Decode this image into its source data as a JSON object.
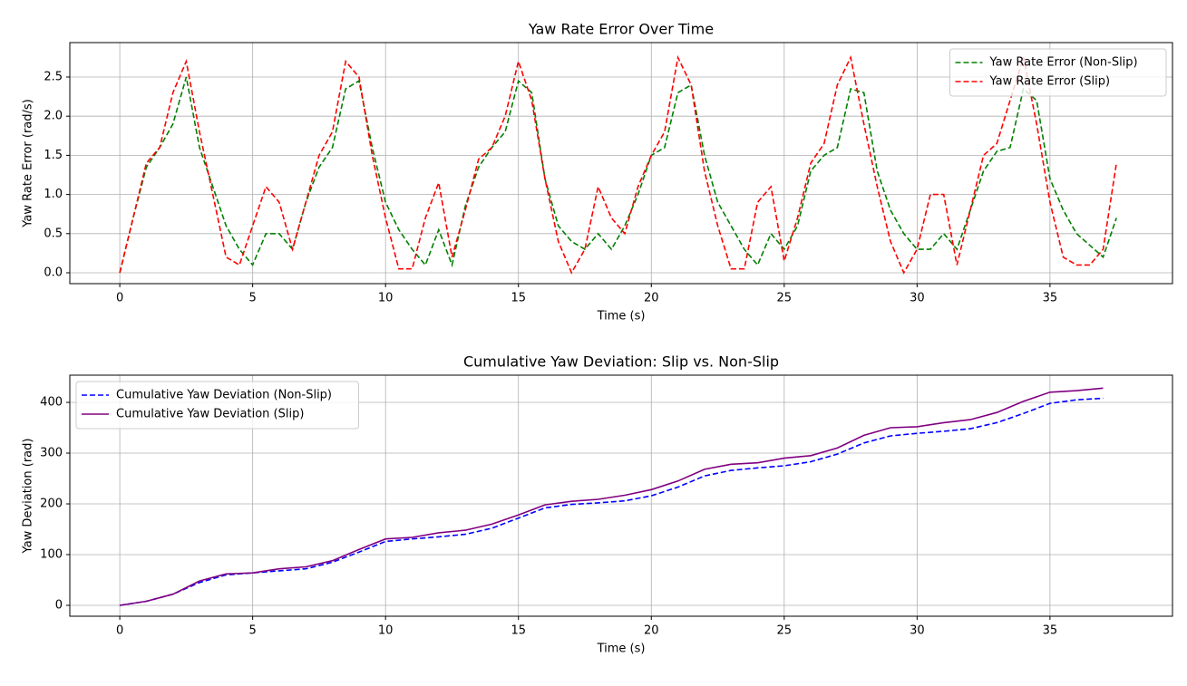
{
  "chart_data": [
    {
      "type": "line",
      "title": "Yaw Rate Error Over Time",
      "x_label": "Time (s)",
      "y_label": "Yaw Rate Error (rad/s)",
      "x": [
        0,
        0.5,
        1,
        1.5,
        2,
        2.5,
        3,
        3.5,
        4,
        4.5,
        5,
        5.5,
        6,
        6.5,
        7,
        7.5,
        8,
        8.5,
        9,
        9.5,
        10,
        10.5,
        11,
        11.5,
        12,
        12.5,
        13,
        13.5,
        14,
        14.5,
        15,
        15.5,
        16,
        16.5,
        17,
        17.5,
        18,
        18.5,
        19,
        19.5,
        20,
        20.5,
        21,
        21.5,
        22,
        22.5,
        23,
        23.5,
        24,
        24.5,
        25,
        25.5,
        26,
        26.5,
        27,
        27.5,
        28,
        28.5,
        29,
        29.5,
        30,
        30.5,
        31,
        31.5,
        32,
        32.5,
        33,
        33.5,
        34,
        34.5,
        35,
        35.5,
        36,
        36.5,
        37,
        37.5
      ],
      "series": [
        {
          "name": "Yaw Rate Error (Non-Slip)",
          "color": "#008000",
          "linestyle": "dashed",
          "values": [
            0,
            0.7,
            1.35,
            1.6,
            1.9,
            2.5,
            1.6,
            1.1,
            0.6,
            0.3,
            0.1,
            0.5,
            0.5,
            0.3,
            0.9,
            1.35,
            1.6,
            2.35,
            2.45,
            1.6,
            0.9,
            0.55,
            0.3,
            0.1,
            0.55,
            0.1,
            0.85,
            1.35,
            1.6,
            1.8,
            2.45,
            2.3,
            1.2,
            0.6,
            0.4,
            0.3,
            0.5,
            0.3,
            0.6,
            1.0,
            1.5,
            1.6,
            2.3,
            2.4,
            1.5,
            0.9,
            0.6,
            0.3,
            0.1,
            0.5,
            0.3,
            0.6,
            1.3,
            1.5,
            1.6,
            2.35,
            2.3,
            1.3,
            0.8,
            0.5,
            0.3,
            0.3,
            0.5,
            0.3,
            0.8,
            1.3,
            1.55,
            1.6,
            2.35,
            2.2,
            1.2,
            0.8,
            0.5,
            0.35,
            0.2,
            0.7
          ]
        },
        {
          "name": "Yaw Rate Error (Slip)",
          "color": "#ff0000",
          "linestyle": "dashed",
          "values": [
            0,
            0.7,
            1.4,
            1.6,
            2.3,
            2.7,
            1.8,
            1.0,
            0.2,
            0.1,
            0.6,
            1.1,
            0.9,
            0.3,
            0.9,
            1.5,
            1.8,
            2.7,
            2.5,
            1.5,
            0.7,
            0.05,
            0.05,
            0.7,
            1.15,
            0.2,
            0.8,
            1.45,
            1.6,
            2.0,
            2.7,
            2.2,
            1.2,
            0.4,
            0.0,
            0.3,
            1.1,
            0.7,
            0.5,
            1.1,
            1.5,
            1.8,
            2.75,
            2.4,
            1.3,
            0.6,
            0.05,
            0.05,
            0.9,
            1.1,
            0.15,
            0.7,
            1.4,
            1.65,
            2.4,
            2.75,
            1.9,
            1.1,
            0.4,
            0.0,
            0.3,
            1.0,
            1.0,
            0.1,
            0.8,
            1.5,
            1.65,
            2.2,
            2.75,
            1.9,
            0.9,
            0.2,
            0.1,
            0.1,
            0.3,
            1.4
          ]
        }
      ],
      "xlim": [
        -1.88,
        39.61
      ],
      "xticks": [
        0,
        5,
        10,
        15,
        20,
        25,
        30,
        35
      ],
      "ylim": [
        -0.139,
        2.94
      ],
      "yticks": [
        {
          "value": 0,
          "label": "0.0"
        },
        {
          "value": 0.5,
          "label": "0.5"
        },
        {
          "value": 1,
          "label": "1.0"
        },
        {
          "value": 1.5,
          "label": "1.5"
        },
        {
          "value": 2,
          "label": "2.0"
        },
        {
          "value": 2.5,
          "label": "2.5"
        }
      ],
      "grid": true,
      "legend": "upper right"
    },
    {
      "type": "line",
      "title": "Cumulative Yaw Deviation: Slip vs. Non-Slip",
      "x_label": "Time (s)",
      "y_label": "Yaw Deviation (rad)",
      "x": [
        0,
        1,
        2,
        3,
        4,
        5,
        6,
        7,
        8,
        9,
        10,
        11,
        12,
        13,
        14,
        15,
        16,
        17,
        18,
        19,
        20,
        21,
        22,
        23,
        24,
        25,
        26,
        27,
        28,
        29,
        30,
        31,
        32,
        33,
        34,
        35,
        36,
        37
      ],
      "series": [
        {
          "name": "Cumulative Yaw Deviation (Non-Slip)",
          "color": "#0000ff",
          "linestyle": "dashed",
          "values": [
            0,
            8,
            22,
            45,
            60,
            64,
            68,
            72,
            85,
            105,
            126,
            131,
            135,
            140,
            152,
            172,
            192,
            199,
            202,
            206,
            216,
            233,
            255,
            266,
            271,
            275,
            283,
            298,
            320,
            334,
            339,
            343,
            348,
            360,
            378,
            398,
            405,
            408
          ]
        },
        {
          "name": "Cumulative Yaw Deviation (Slip)",
          "color": "#800080",
          "linestyle": "solid",
          "values": [
            0,
            8,
            22,
            48,
            62,
            64,
            72,
            76,
            88,
            110,
            131,
            134,
            143,
            148,
            160,
            178,
            198,
            205,
            209,
            217,
            228,
            245,
            268,
            278,
            281,
            290,
            295,
            310,
            335,
            350,
            352,
            360,
            366,
            380,
            402,
            420,
            423,
            428
          ]
        }
      ],
      "xlim": [
        -1.88,
        39.61
      ],
      "xticks": [
        0,
        5,
        10,
        15,
        20,
        25,
        30,
        35
      ],
      "ylim": [
        -21.4,
        453.6
      ],
      "yticks": [
        0,
        100,
        200,
        300,
        400
      ],
      "grid": true,
      "legend": "upper left"
    }
  ]
}
